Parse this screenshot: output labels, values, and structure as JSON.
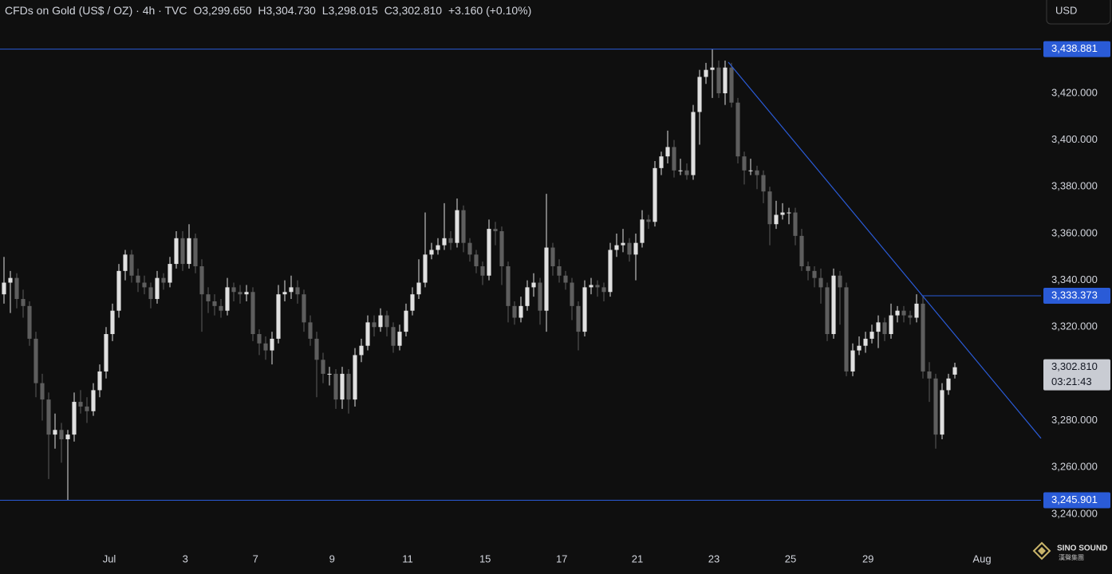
{
  "header": {
    "symbol": "CFDs on Gold (US$ / OZ) · 4h · TVC",
    "open": "O3,299.650",
    "high": "H3,304.730",
    "low": "L3,298.015",
    "close": "C3,302.810",
    "change": "+3.160 (+0.10%)"
  },
  "currency_button": "USD",
  "logo": {
    "name": "SINO SOUND",
    "subtitle": "漢聲集團"
  },
  "chart_data": {
    "type": "candlestick",
    "up_color": "#e0e0e0",
    "down_color": "#5e5e5e",
    "line_color": "#2a5bd7",
    "grid": false,
    "xlim": [
      -0.625,
      162.5
    ],
    "ylim": [
      3226.3,
      3459.9
    ],
    "yticks": [
      {
        "value": 3240,
        "label": "3,240.000"
      },
      {
        "value": 3260,
        "label": "3,260.000"
      },
      {
        "value": 3280,
        "label": "3,280.000"
      },
      {
        "value": 3320,
        "label": "3,320.000"
      },
      {
        "value": 3340,
        "label": "3,340.000"
      },
      {
        "value": 3360,
        "label": "3,360.000"
      },
      {
        "value": 3380,
        "label": "3,380.000"
      },
      {
        "value": 3400,
        "label": "3,400.000"
      },
      {
        "value": 3420,
        "label": "3,420.000"
      }
    ],
    "xticks": [
      {
        "value": 16.5,
        "label": "Jul"
      },
      {
        "value": 28.4,
        "label": "3"
      },
      {
        "value": 39.4,
        "label": "7"
      },
      {
        "value": 51.4,
        "label": "9"
      },
      {
        "value": 63.25,
        "label": "11"
      },
      {
        "value": 75.4,
        "label": "15"
      },
      {
        "value": 87.4,
        "label": "17"
      },
      {
        "value": 99.25,
        "label": "21"
      },
      {
        "value": 111.25,
        "label": "23"
      },
      {
        "value": 123.25,
        "label": "25"
      },
      {
        "value": 135.4,
        "label": "29"
      },
      {
        "value": 153.25,
        "label": "Aug"
      }
    ],
    "levels": [
      {
        "value": 3438.881,
        "label": "3,438.881",
        "from": -0.625
      },
      {
        "value": 3333.373,
        "label": "3,333.373",
        "from": 143.8
      },
      {
        "value": 3245.901,
        "label": "3,245.901",
        "from": -0.625
      }
    ],
    "trend_line": {
      "from": [
        113.5,
        3433.3
      ],
      "to": [
        162.5,
        3272.4
      ]
    },
    "last_price": {
      "value": 3302.81,
      "label": "3,302.810",
      "countdown": "03:21:43"
    },
    "ohlc": [
      [
        3334,
        3350,
        3330,
        3339
      ],
      [
        3339,
        3344,
        3326,
        3341
      ],
      [
        3341,
        3343,
        3328,
        3332
      ],
      [
        3332,
        3336,
        3324,
        3329
      ],
      [
        3329,
        3331,
        3312,
        3315
      ],
      [
        3315,
        3318,
        3290,
        3296
      ],
      [
        3296,
        3300,
        3280,
        3289
      ],
      [
        3289,
        3292,
        3255,
        3274
      ],
      [
        3274,
        3283,
        3268,
        3276
      ],
      [
        3276,
        3279,
        3262,
        3272
      ],
      [
        3272,
        3276,
        3246,
        3274
      ],
      [
        3274,
        3292,
        3271,
        3288
      ],
      [
        3288,
        3293,
        3283,
        3286
      ],
      [
        3286,
        3290,
        3279,
        3284
      ],
      [
        3284,
        3296,
        3282,
        3293
      ],
      [
        3293,
        3304,
        3290,
        3301
      ],
      [
        3301,
        3320,
        3298,
        3317
      ],
      [
        3317,
        3330,
        3314,
        3327
      ],
      [
        3327,
        3347,
        3324,
        3344
      ],
      [
        3344,
        3353,
        3340,
        3351
      ],
      [
        3351,
        3353,
        3339,
        3342
      ],
      [
        3342,
        3345,
        3335,
        3339
      ],
      [
        3339,
        3342,
        3334,
        3337
      ],
      [
        3337,
        3339,
        3328,
        3332
      ],
      [
        3332,
        3344,
        3330,
        3341
      ],
      [
        3341,
        3343,
        3336,
        3339
      ],
      [
        3339,
        3350,
        3337,
        3347
      ],
      [
        3347,
        3361,
        3345,
        3358
      ],
      [
        3358,
        3361,
        3344,
        3347
      ],
      [
        3347,
        3364,
        3345,
        3358
      ],
      [
        3358,
        3360,
        3343,
        3346
      ],
      [
        3346,
        3349,
        3318,
        3334
      ],
      [
        3334,
        3337,
        3326,
        3331
      ],
      [
        3331,
        3334,
        3325,
        3329
      ],
      [
        3329,
        3332,
        3324,
        3327
      ],
      [
        3327,
        3341,
        3325,
        3337
      ],
      [
        3337,
        3339,
        3331,
        3335
      ],
      [
        3335,
        3338,
        3330,
        3334
      ],
      [
        3334,
        3338,
        3331,
        3335
      ],
      [
        3335,
        3337,
        3314,
        3317
      ],
      [
        3317,
        3319,
        3308,
        3313
      ],
      [
        3313,
        3316,
        3306,
        3310
      ],
      [
        3310,
        3318,
        3304,
        3315
      ],
      [
        3315,
        3338,
        3313,
        3334
      ],
      [
        3334,
        3340,
        3331,
        3335
      ],
      [
        3335,
        3342,
        3332,
        3337
      ],
      [
        3337,
        3340,
        3330,
        3334
      ],
      [
        3334,
        3336,
        3318,
        3322
      ],
      [
        3322,
        3325,
        3312,
        3315
      ],
      [
        3315,
        3318,
        3290,
        3306
      ],
      [
        3306,
        3309,
        3296,
        3300
      ],
      [
        3300,
        3303,
        3295,
        3300
      ],
      [
        3300,
        3302,
        3285,
        3289
      ],
      [
        3289,
        3303,
        3285,
        3300
      ],
      [
        3300,
        3302,
        3283,
        3289
      ],
      [
        3289,
        3311,
        3286,
        3308
      ],
      [
        3308,
        3315,
        3305,
        3312
      ],
      [
        3312,
        3325,
        3310,
        3322
      ],
      [
        3322,
        3325,
        3316,
        3320
      ],
      [
        3320,
        3328,
        3318,
        3325
      ],
      [
        3325,
        3327,
        3316,
        3320
      ],
      [
        3320,
        3322,
        3309,
        3312
      ],
      [
        3312,
        3321,
        3310,
        3318
      ],
      [
        3318,
        3330,
        3316,
        3327
      ],
      [
        3327,
        3337,
        3325,
        3334
      ],
      [
        3334,
        3349,
        3332,
        3339
      ],
      [
        3339,
        3369,
        3337,
        3351
      ],
      [
        3351,
        3356,
        3349,
        3353
      ],
      [
        3353,
        3358,
        3351,
        3355
      ],
      [
        3355,
        3373,
        3353,
        3358
      ],
      [
        3358,
        3361,
        3353,
        3356
      ],
      [
        3356,
        3375,
        3354,
        3370
      ],
      [
        3370,
        3372,
        3352,
        3356
      ],
      [
        3356,
        3358,
        3348,
        3351
      ],
      [
        3351,
        3353,
        3343,
        3346
      ],
      [
        3346,
        3348,
        3338,
        3342
      ],
      [
        3342,
        3366,
        3340,
        3362
      ],
      [
        3362,
        3365,
        3355,
        3361
      ],
      [
        3361,
        3363,
        3338,
        3346
      ],
      [
        3346,
        3348,
        3322,
        3329
      ],
      [
        3329,
        3331,
        3321,
        3324
      ],
      [
        3324,
        3333,
        3322,
        3329
      ],
      [
        3329,
        3340,
        3327,
        3337
      ],
      [
        3337,
        3343,
        3333,
        3339
      ],
      [
        3339,
        3341,
        3321,
        3327
      ],
      [
        3327,
        3377,
        3318,
        3354
      ],
      [
        3354,
        3356,
        3342,
        3346
      ],
      [
        3346,
        3349,
        3339,
        3342
      ],
      [
        3342,
        3344,
        3336,
        3339
      ],
      [
        3339,
        3341,
        3323,
        3329
      ],
      [
        3329,
        3331,
        3310,
        3318
      ],
      [
        3318,
        3340,
        3316,
        3337
      ],
      [
        3337,
        3341,
        3334,
        3338
      ],
      [
        3338,
        3340,
        3333,
        3337
      ],
      [
        3337,
        3339,
        3331,
        3335
      ],
      [
        3335,
        3356,
        3333,
        3353
      ],
      [
        3353,
        3360,
        3350,
        3355
      ],
      [
        3355,
        3362,
        3352,
        3356
      ],
      [
        3356,
        3358,
        3348,
        3351
      ],
      [
        3351,
        3360,
        3340,
        3356
      ],
      [
        3356,
        3370,
        3354,
        3366
      ],
      [
        3366,
        3368,
        3362,
        3365
      ],
      [
        3365,
        3391,
        3363,
        3388
      ],
      [
        3388,
        3395,
        3385,
        3393
      ],
      [
        3393,
        3404,
        3390,
        3397
      ],
      [
        3397,
        3400,
        3384,
        3387
      ],
      [
        3387,
        3392,
        3385,
        3387
      ],
      [
        3387,
        3390,
        3383,
        3385
      ],
      [
        3385,
        3415,
        3383,
        3412
      ],
      [
        3412,
        3430,
        3398,
        3427
      ],
      [
        3427,
        3433,
        3424,
        3430
      ],
      [
        3430,
        3439,
        3418,
        3431
      ],
      [
        3431,
        3434,
        3418,
        3420
      ],
      [
        3420,
        3434,
        3415,
        3431
      ],
      [
        3431,
        3433,
        3414,
        3416
      ],
      [
        3416,
        3418,
        3390,
        3393
      ],
      [
        3393,
        3395,
        3381,
        3387
      ],
      [
        3387,
        3392,
        3385,
        3387
      ],
      [
        3387,
        3389,
        3379,
        3385
      ],
      [
        3385,
        3387,
        3373,
        3378
      ],
      [
        3378,
        3380,
        3355,
        3364
      ],
      [
        3364,
        3374,
        3362,
        3368
      ],
      [
        3368,
        3373,
        3366,
        3369
      ],
      [
        3369,
        3371,
        3364,
        3369
      ],
      [
        3369,
        3371,
        3355,
        3359
      ],
      [
        3359,
        3362,
        3344,
        3346
      ],
      [
        3346,
        3348,
        3340,
        3344
      ],
      [
        3344,
        3346,
        3337,
        3341
      ],
      [
        3341,
        3345,
        3330,
        3337
      ],
      [
        3337,
        3339,
        3314,
        3317
      ],
      [
        3317,
        3345,
        3315,
        3342
      ],
      [
        3342,
        3344,
        3321,
        3337
      ],
      [
        3337,
        3339,
        3299,
        3301
      ],
      [
        3301,
        3313,
        3299,
        3310
      ],
      [
        3310,
        3316,
        3308,
        3312
      ],
      [
        3312,
        3318,
        3309,
        3315
      ],
      [
        3315,
        3321,
        3313,
        3318
      ],
      [
        3318,
        3325,
        3311,
        3322
      ],
      [
        3322,
        3324,
        3314,
        3317
      ],
      [
        3317,
        3330,
        3315,
        3325
      ],
      [
        3325,
        3329,
        3322,
        3327
      ],
      [
        3327,
        3329,
        3322,
        3325
      ],
      [
        3325,
        3327,
        3321,
        3324
      ],
      [
        3324,
        3334,
        3322,
        3330
      ],
      [
        3330,
        3333,
        3298,
        3301
      ],
      [
        3301,
        3305,
        3288,
        3298
      ],
      [
        3298,
        3300,
        3268,
        3274
      ],
      [
        3274,
        3296,
        3272,
        3293
      ],
      [
        3293,
        3300,
        3291,
        3298
      ],
      [
        3299.65,
        3304.73,
        3298.015,
        3302.81
      ]
    ]
  }
}
